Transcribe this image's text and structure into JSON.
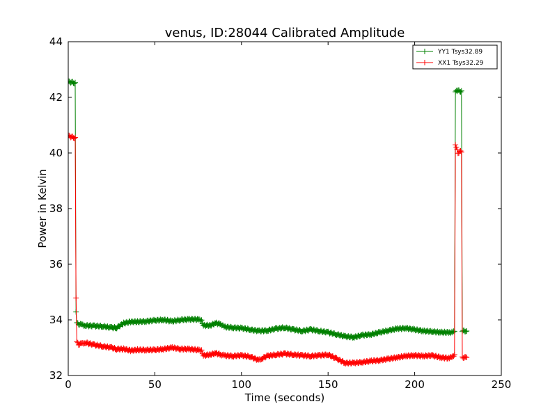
{
  "chart_data": {
    "type": "line",
    "title": "venus, ID:28044 Calibrated Amplitude",
    "xlabel": "Time (seconds)",
    "ylabel": "Power in Kelvin",
    "xlim": [
      0,
      250
    ],
    "ylim": [
      32,
      44
    ],
    "xticks": [
      0,
      50,
      100,
      150,
      200,
      250
    ],
    "yticks": [
      32,
      34,
      36,
      38,
      40,
      42,
      44
    ],
    "grid": false,
    "legend_position": "top-right",
    "series": [
      {
        "name": "YY1 Tsys32.89",
        "color": "#008000",
        "x": [
          0,
          1,
          2,
          3,
          4,
          4.5,
          5,
          6,
          8,
          10,
          15,
          20,
          25,
          28,
          32,
          36,
          40,
          45,
          50,
          55,
          60,
          65,
          70,
          75,
          77,
          78,
          82,
          85,
          88,
          90,
          95,
          100,
          105,
          110,
          115,
          120,
          125,
          130,
          135,
          140,
          145,
          150,
          155,
          160,
          165,
          170,
          175,
          180,
          185,
          190,
          195,
          200,
          205,
          210,
          215,
          220,
          222,
          223,
          223.5,
          224,
          225,
          226,
          227,
          227.5,
          228,
          229,
          230
        ],
        "y": [
          42.55,
          42.55,
          42.55,
          42.52,
          42.52,
          34.3,
          33.88,
          33.85,
          33.82,
          33.8,
          33.78,
          33.77,
          33.72,
          33.72,
          33.88,
          33.93,
          33.93,
          33.95,
          33.98,
          34.0,
          33.95,
          34.0,
          34.02,
          34.02,
          33.98,
          33.8,
          33.8,
          33.88,
          33.85,
          33.75,
          33.72,
          33.7,
          33.65,
          33.6,
          33.62,
          33.68,
          33.72,
          33.65,
          33.6,
          33.65,
          33.6,
          33.55,
          33.48,
          33.4,
          33.38,
          33.45,
          33.48,
          33.55,
          33.62,
          33.68,
          33.7,
          33.65,
          33.6,
          33.58,
          33.55,
          33.55,
          33.55,
          33.58,
          42.2,
          42.25,
          42.25,
          42.22,
          42.22,
          33.6,
          33.6,
          33.6,
          33.6
        ]
      },
      {
        "name": "XX1 Tsys32.29",
        "color": "#ff0000",
        "x": [
          0,
          1,
          2,
          3,
          4,
          4.5,
          5,
          6,
          8,
          10,
          15,
          20,
          25,
          28,
          32,
          36,
          40,
          45,
          50,
          55,
          60,
          65,
          70,
          75,
          77,
          78,
          82,
          85,
          88,
          90,
          95,
          100,
          105,
          110,
          112,
          115,
          120,
          125,
          130,
          135,
          140,
          145,
          150,
          155,
          160,
          165,
          170,
          175,
          180,
          185,
          190,
          195,
          200,
          205,
          210,
          215,
          220,
          222,
          223,
          223.5,
          224,
          225,
          226,
          227,
          227.5,
          228,
          229,
          230
        ],
        "y": [
          40.6,
          40.6,
          40.58,
          40.55,
          40.55,
          34.8,
          33.2,
          33.12,
          33.15,
          33.18,
          33.1,
          33.05,
          33.0,
          32.95,
          32.95,
          32.9,
          32.92,
          32.92,
          32.92,
          32.95,
          33.0,
          32.95,
          32.95,
          32.92,
          32.9,
          32.72,
          32.75,
          32.8,
          32.75,
          32.72,
          32.7,
          32.72,
          32.68,
          32.55,
          32.62,
          32.7,
          32.75,
          32.78,
          32.75,
          32.72,
          32.7,
          32.72,
          32.75,
          32.6,
          32.45,
          32.45,
          32.48,
          32.52,
          32.55,
          32.6,
          32.65,
          32.7,
          32.72,
          32.7,
          32.72,
          32.65,
          32.62,
          32.7,
          32.75,
          40.3,
          40.2,
          40.0,
          40.05,
          40.05,
          32.65,
          32.65,
          32.65,
          32.65
        ]
      }
    ]
  }
}
